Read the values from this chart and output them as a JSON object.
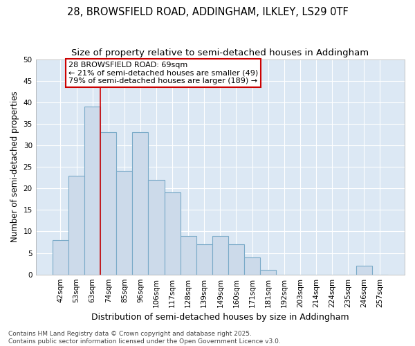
{
  "title": "28, BROWSFIELD ROAD, ADDINGHAM, ILKLEY, LS29 0TF",
  "subtitle": "Size of property relative to semi-detached houses in Addingham",
  "xlabel": "Distribution of semi-detached houses by size in Addingham",
  "ylabel": "Number of semi-detached properties",
  "categories": [
    "42sqm",
    "53sqm",
    "63sqm",
    "74sqm",
    "85sqm",
    "96sqm",
    "106sqm",
    "117sqm",
    "128sqm",
    "139sqm",
    "149sqm",
    "160sqm",
    "171sqm",
    "181sqm",
    "192sqm",
    "203sqm",
    "214sqm",
    "224sqm",
    "235sqm",
    "246sqm",
    "257sqm"
  ],
  "values": [
    8,
    23,
    39,
    33,
    24,
    33,
    22,
    19,
    9,
    7,
    9,
    7,
    4,
    1,
    0,
    0,
    0,
    0,
    0,
    2,
    0
  ],
  "bar_color": "#ccdaea",
  "bar_edge_color": "#7aaac8",
  "background_color": "#e8f0f8",
  "plot_bg_color": "#dce8f4",
  "grid_color": "#ffffff",
  "annotation_box_text": "28 BROWSFIELD ROAD: 69sqm\n← 21% of semi-detached houses are smaller (49)\n79% of semi-detached houses are larger (189) →",
  "annotation_box_color": "#ffffff",
  "annotation_box_edge_color": "#cc0000",
  "red_line_bar_index": 3,
  "ylim": [
    0,
    50
  ],
  "yticks": [
    0,
    5,
    10,
    15,
    20,
    25,
    30,
    35,
    40,
    45,
    50
  ],
  "footer": "Contains HM Land Registry data © Crown copyright and database right 2025.\nContains public sector information licensed under the Open Government Licence v3.0.",
  "title_fontsize": 10.5,
  "subtitle_fontsize": 9.5,
  "xlabel_fontsize": 9,
  "ylabel_fontsize": 8.5,
  "tick_fontsize": 7.5,
  "annotation_fontsize": 8,
  "footer_fontsize": 6.5
}
